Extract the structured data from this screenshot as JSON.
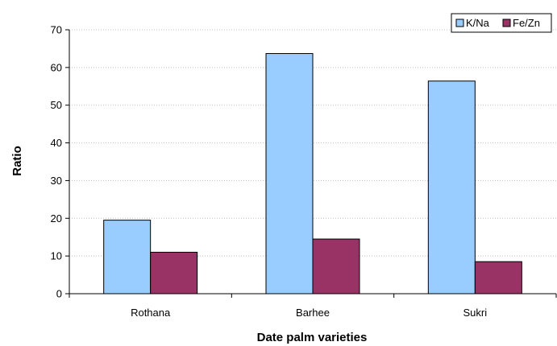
{
  "chart_data": {
    "type": "bar",
    "categories": [
      "Rothana",
      "Barhee",
      "Sukri"
    ],
    "series": [
      {
        "name": "K/Na",
        "values": [
          19.5,
          63.7,
          56.4
        ],
        "color": "#99ccff"
      },
      {
        "name": "Fe/Zn",
        "values": [
          11.0,
          14.5,
          8.5
        ],
        "color": "#993366"
      }
    ],
    "xlabel": "Date palm varieties",
    "ylabel": "Ratio",
    "ylim": [
      0,
      70
    ],
    "yticks": [
      0,
      10,
      20,
      30,
      40,
      50,
      60,
      70
    ],
    "grid": true,
    "legend_position": "top-right"
  }
}
